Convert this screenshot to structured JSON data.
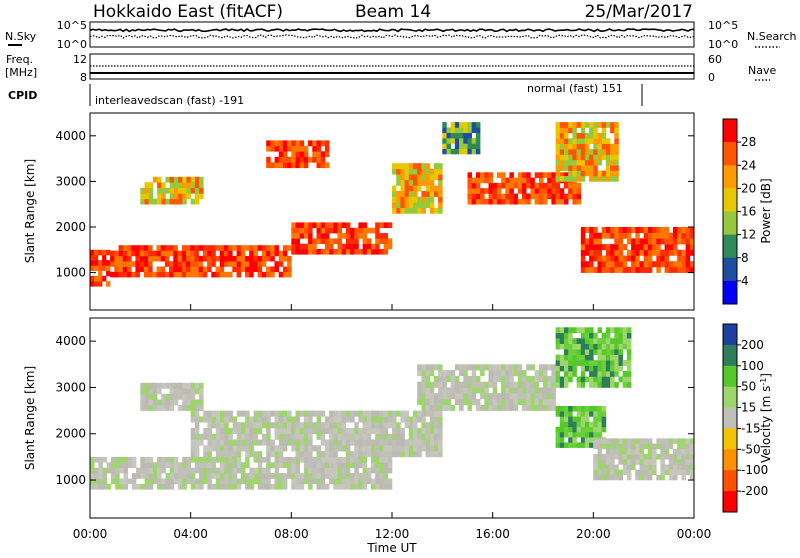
{
  "header": {
    "station": "Hokkaido East (fitACF)",
    "beam": "Beam 14",
    "date": "25/Mar/2017"
  },
  "top_panels": {
    "nsky_label": "N.Sky",
    "nsky_ticks": [
      "10^5",
      "10^0"
    ],
    "nsearch_label": "N.Search",
    "nsearch_ticks": [
      "10^5",
      "10^0"
    ],
    "freq_label_1": "Freq.",
    "freq_label_2": "[MHz]",
    "freq_ticks": [
      "12",
      "8"
    ],
    "nave_label": "Nave",
    "nave_ticks": [
      "60",
      "0"
    ],
    "cpid_label": "CPID",
    "cpid_segments": [
      {
        "text": "interleavedscan (fast) -191"
      },
      {
        "text": "normal (fast) 151"
      }
    ]
  },
  "chart_data": [
    {
      "type": "heatmap",
      "title": "Power",
      "ylabel": "Slant Range [km]",
      "xlabel": "",
      "xlim": [
        "00:00",
        "00:00 (+1 day)"
      ],
      "ylim": [
        180,
        4500
      ],
      "y_ticks": [
        "1000",
        "2000",
        "3000",
        "4000"
      ],
      "colorbar": {
        "label": "Power [dB]",
        "ticks": [
          "28",
          "24",
          "20",
          "16",
          "12",
          "8",
          "4"
        ],
        "colors": [
          "#ff0000",
          "#ff5500",
          "#ff9a00",
          "#e7c800",
          "#95c93d",
          "#2e8b57",
          "#1f4e9e",
          "#0000ff"
        ]
      },
      "bands": [
        {
          "hour_start": 0.0,
          "hour_end": 0.8,
          "range_low": 700,
          "range_high": 1500,
          "level": "high"
        },
        {
          "hour_start": 0.8,
          "hour_end": 8.0,
          "range_low": 900,
          "range_high": 1600,
          "level": "high"
        },
        {
          "hour_start": 8.0,
          "hour_end": 12.0,
          "range_low": 1400,
          "range_high": 2100,
          "level": "high"
        },
        {
          "hour_start": 12.0,
          "hour_end": 14.0,
          "range_low": 2300,
          "range_high": 3400,
          "level": "mid"
        },
        {
          "hour_start": 15.0,
          "hour_end": 19.5,
          "range_low": 2500,
          "range_high": 3200,
          "level": "high"
        },
        {
          "hour_start": 19.5,
          "hour_end": 24.0,
          "range_low": 1000,
          "range_high": 2000,
          "level": "high"
        },
        {
          "hour_start": 2.0,
          "hour_end": 4.5,
          "range_low": 2500,
          "range_high": 3100,
          "level": "mid"
        },
        {
          "hour_start": 7.0,
          "hour_end": 9.5,
          "range_low": 3300,
          "range_high": 3900,
          "level": "high"
        },
        {
          "hour_start": 14.0,
          "hour_end": 15.5,
          "range_low": 3600,
          "range_high": 4300,
          "level": "low"
        },
        {
          "hour_start": 18.5,
          "hour_end": 21.0,
          "range_low": 3000,
          "range_high": 4300,
          "level": "mid"
        }
      ]
    },
    {
      "type": "heatmap",
      "title": "Velocity",
      "ylabel": "Slant Range [km]",
      "xlabel": "Time UT",
      "x_ticks": [
        "00:00",
        "04:00",
        "08:00",
        "12:00",
        "16:00",
        "20:00",
        "00:00"
      ],
      "ylim": [
        180,
        4500
      ],
      "y_ticks": [
        "1000",
        "2000",
        "3000",
        "4000"
      ],
      "colorbar": {
        "label": "Velocity [m s^-1]",
        "ticks": [
          "200",
          "100",
          "50",
          "15",
          "-15",
          "-50",
          "-100",
          "-200"
        ],
        "colors": [
          "#1f3fa0",
          "#2e7d5b",
          "#55c82a",
          "#9ed56c",
          "#c0c0b8",
          "#f2c400",
          "#ff9000",
          "#ff5000",
          "#ff0000"
        ]
      },
      "bands": [
        {
          "hour_start": 0.0,
          "hour_end": 12.0,
          "range_low": 800,
          "range_high": 1500,
          "level": "ground"
        },
        {
          "hour_start": 4.0,
          "hour_end": 14.0,
          "range_low": 1500,
          "range_high": 2500,
          "level": "ground"
        },
        {
          "hour_start": 13.0,
          "hour_end": 18.5,
          "range_low": 2500,
          "range_high": 3500,
          "level": "ground"
        },
        {
          "hour_start": 18.5,
          "hour_end": 20.5,
          "range_low": 1700,
          "range_high": 2600,
          "level": "positive"
        },
        {
          "hour_start": 20.0,
          "hour_end": 24.0,
          "range_low": 1000,
          "range_high": 1900,
          "level": "ground"
        },
        {
          "hour_start": 2.0,
          "hour_end": 4.5,
          "range_low": 2500,
          "range_high": 3100,
          "level": "ground"
        },
        {
          "hour_start": 18.5,
          "hour_end": 21.5,
          "range_low": 3000,
          "range_high": 4300,
          "level": "positive"
        }
      ]
    }
  ]
}
